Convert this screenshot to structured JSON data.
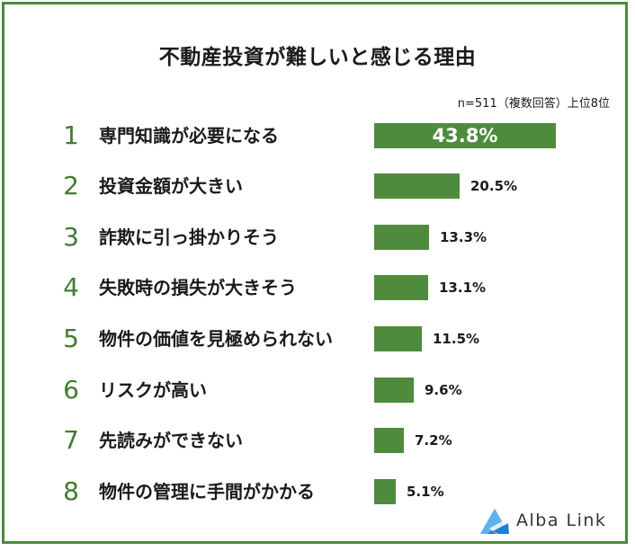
{
  "title": "不動産投資が難しいと感じる理由",
  "note": "n=511（複数回答）上位8位",
  "chart_data": {
    "type": "bar",
    "orientation": "horizontal",
    "ranks": [
      "1",
      "2",
      "3",
      "4",
      "5",
      "6",
      "7",
      "8"
    ],
    "categories": [
      "専門知識が必要になる",
      "投資金額が大きい",
      "詐欺に引っ掛かりそう",
      "失敗時の損失が大きそう",
      "物件の価値を見極められない",
      "リスクが高い",
      "先読みができない",
      "物件の管理に手間がかかる"
    ],
    "values": [
      43.8,
      20.5,
      13.3,
      13.1,
      11.5,
      9.6,
      7.2,
      5.1
    ],
    "value_labels": [
      "43.8%",
      "20.5%",
      "13.3%",
      "13.1%",
      "11.5%",
      "9.6%",
      "7.2%",
      "5.1%"
    ],
    "unit": "%",
    "bar_color": "#4f8b3c"
  },
  "logo": {
    "text": "Alba Link"
  },
  "colors": {
    "border": "#4a8a3c",
    "bar": "#4f8b3c",
    "rank": "#3f7d2f"
  }
}
